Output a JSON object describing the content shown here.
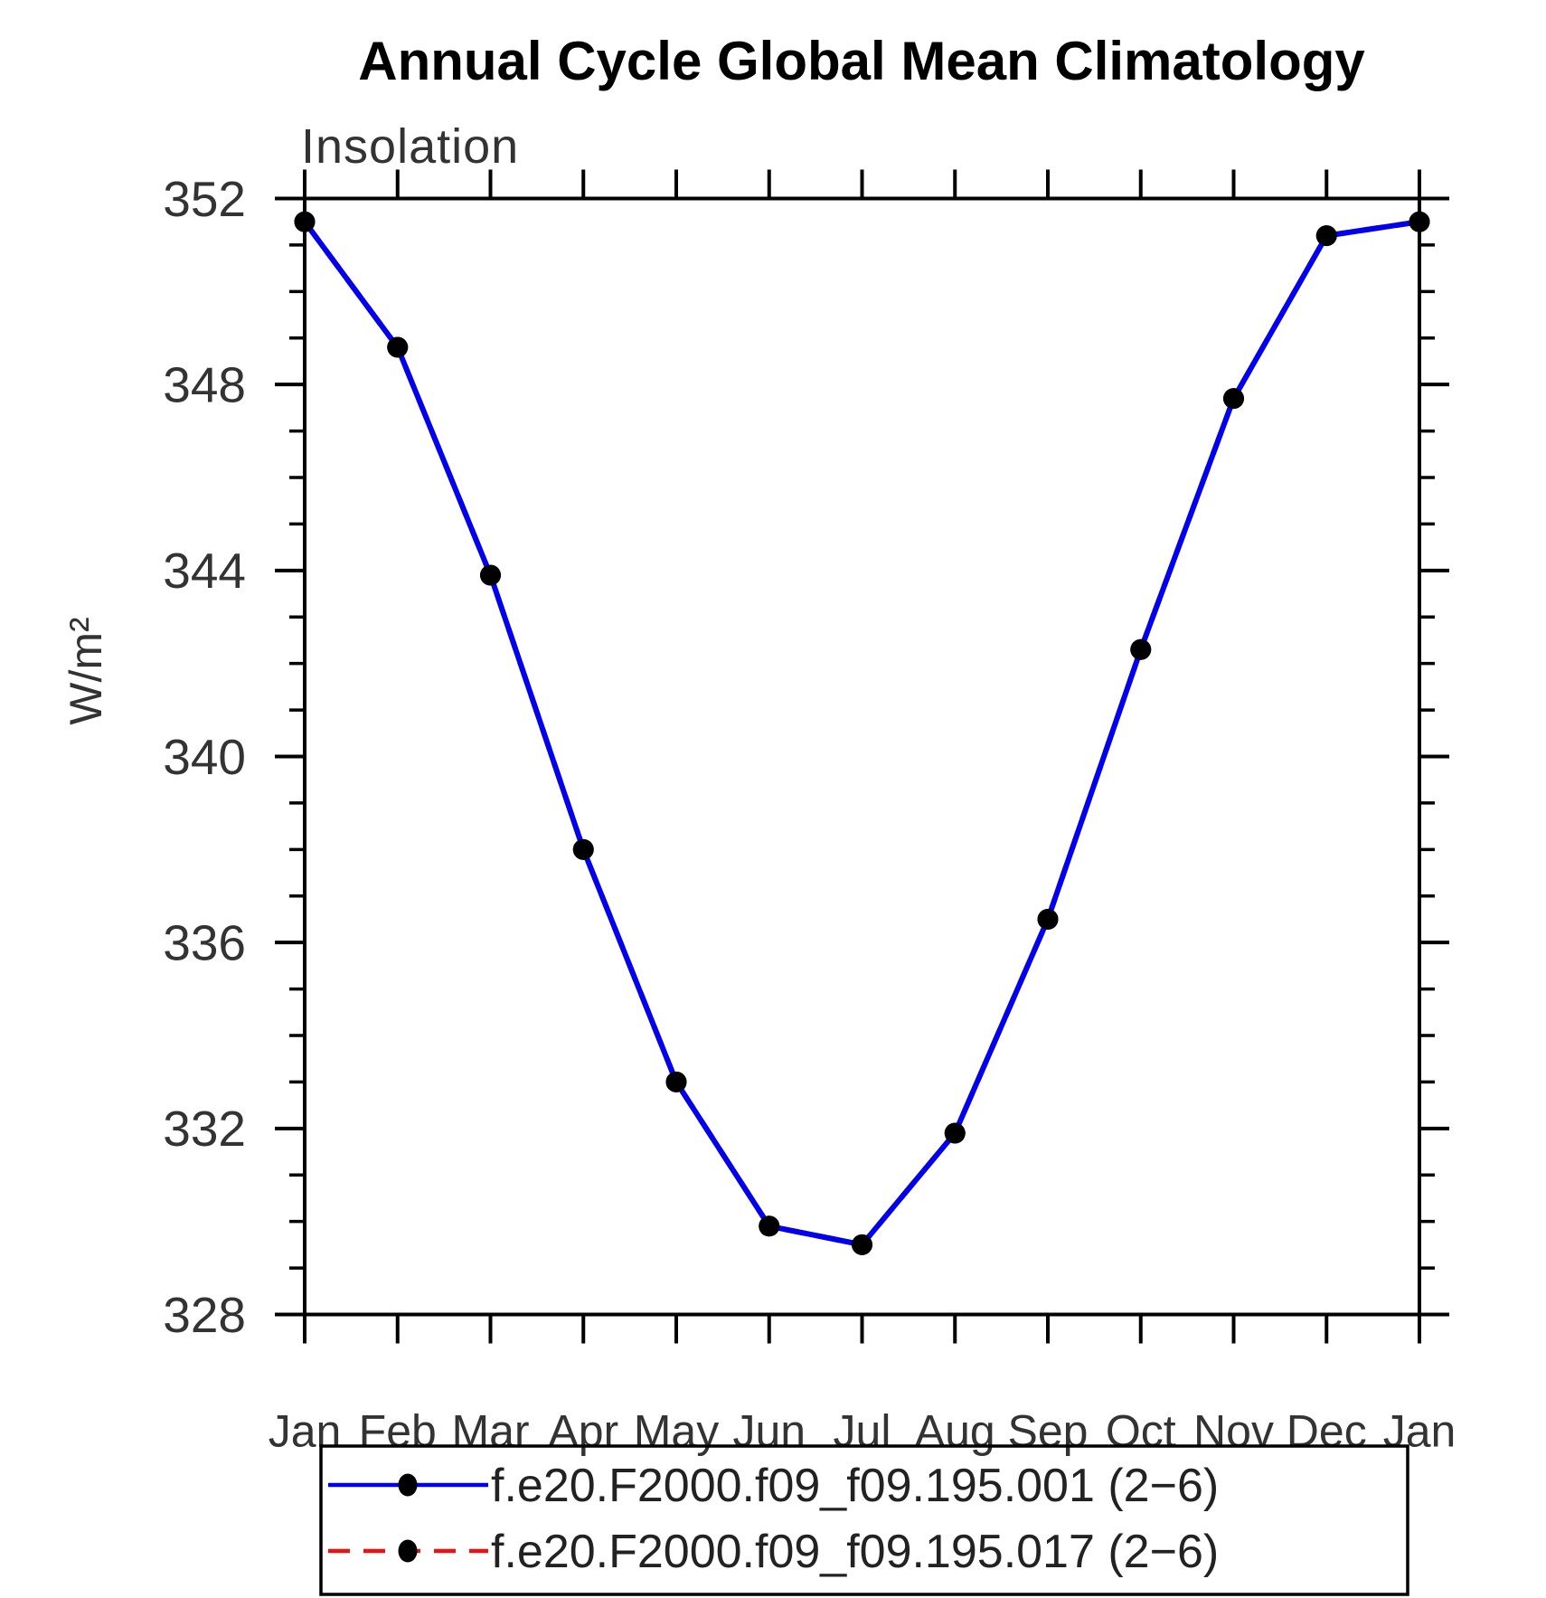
{
  "chart_data": {
    "type": "line",
    "title": "Annual Cycle Global Mean Climatology",
    "subtitle": "Insolation",
    "ylabel": "W/m²",
    "categories": [
      "Jan",
      "Feb",
      "Mar",
      "Apr",
      "May",
      "Jun",
      "Jul",
      "Aug",
      "Sep",
      "Oct",
      "Nov",
      "Dec",
      "Jan"
    ],
    "ylim": [
      328,
      352
    ],
    "yticks": [
      328,
      332,
      336,
      340,
      344,
      348,
      352
    ],
    "minor_tick_step": 1,
    "grid": false,
    "legend_position": "bottom",
    "axis_color": "#000000",
    "series": [
      {
        "name": "f.e20.F2000.f09_f09.195.001 (2−6)",
        "color": "#0000EE",
        "line_style": "solid",
        "marker": "filled-circle",
        "marker_color": "#000000",
        "values": [
          351.5,
          348.8,
          343.9,
          338.0,
          333.0,
          329.9,
          329.5,
          331.9,
          336.5,
          342.3,
          347.7,
          351.2,
          351.5
        ]
      },
      {
        "name": "f.e20.F2000.f09_f09.195.017 (2−6)",
        "color": "#EE1111",
        "line_style": "dashed",
        "marker": "filled-circle",
        "marker_color": "#000000",
        "values": [
          351.5,
          348.8,
          343.9,
          338.0,
          333.0,
          329.9,
          329.5,
          331.9,
          336.5,
          342.3,
          347.7,
          351.2,
          351.5
        ]
      }
    ]
  }
}
